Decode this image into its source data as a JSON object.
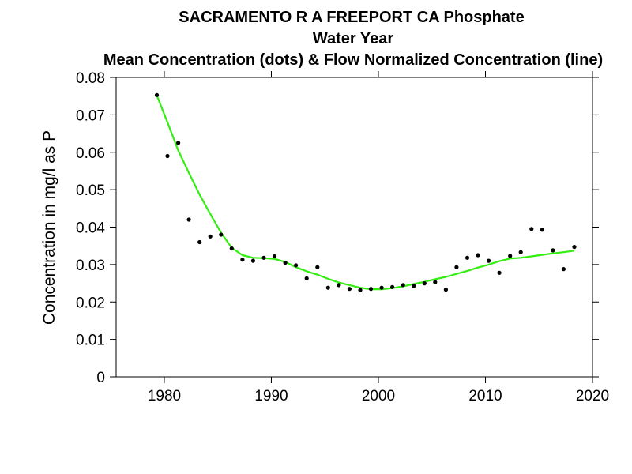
{
  "chart_data": {
    "type": "scatter",
    "title": "SACRAMENTO R A FREEPORT CA   Phosphate",
    "subtitle": "Water Year",
    "subtitle2": "Mean Concentration (dots) & Flow Normalized Concentration (line)",
    "xlabel": "",
    "ylabel": "Concentration in mg/l as P",
    "xlim": [
      1975.5,
      2020
    ],
    "ylim": [
      0,
      0.08
    ],
    "xticks": [
      1980,
      1990,
      2000,
      2010,
      2020
    ],
    "yticks": [
      0,
      0.01,
      0.02,
      0.03,
      0.04,
      0.05,
      0.06,
      0.07,
      0.08
    ],
    "xtick_labels": [
      "1980",
      "1990",
      "2000",
      "2010",
      "2020"
    ],
    "ytick_labels": [
      "0",
      "0.01",
      "0.02",
      "0.03",
      "0.04",
      "0.05",
      "0.06",
      "0.07",
      "0.08"
    ],
    "grid": false,
    "series": [
      {
        "name": "Mean Concentration",
        "kind": "dots",
        "color": "#000000",
        "x": [
          1979.3,
          1980.3,
          1981.3,
          1982.3,
          1983.3,
          1984.3,
          1985.3,
          1986.3,
          1987.3,
          1988.3,
          1989.3,
          1990.3,
          1991.3,
          1992.3,
          1993.3,
          1994.3,
          1995.3,
          1996.3,
          1997.3,
          1998.3,
          1999.3,
          2000.3,
          2001.3,
          2002.3,
          2003.3,
          2004.3,
          2005.3,
          2006.3,
          2007.3,
          2008.3,
          2009.3,
          2010.3,
          2011.3,
          2012.3,
          2013.3,
          2014.3,
          2015.3,
          2016.3,
          2017.3,
          2018.3
        ],
        "y": [
          0.0753,
          0.059,
          0.0625,
          0.042,
          0.036,
          0.0375,
          0.038,
          0.0343,
          0.0313,
          0.031,
          0.0318,
          0.0322,
          0.0305,
          0.0298,
          0.0263,
          0.0293,
          0.0238,
          0.0245,
          0.0235,
          0.0232,
          0.0235,
          0.0238,
          0.024,
          0.0245,
          0.0243,
          0.025,
          0.0253,
          0.0233,
          0.0293,
          0.0318,
          0.0325,
          0.031,
          0.0278,
          0.0323,
          0.0333,
          0.0395,
          0.0393,
          0.0338,
          0.0288,
          0.0347
        ]
      },
      {
        "name": "Flow Normalized Concentration",
        "kind": "line",
        "color": "#33ee11",
        "x": [
          1979.3,
          1980.3,
          1981.3,
          1982.3,
          1983.3,
          1984.3,
          1985.3,
          1986.3,
          1987.3,
          1988.3,
          1989.3,
          1990.3,
          1991.3,
          1992.3,
          1993.3,
          1994.3,
          1995.3,
          1996.3,
          1997.3,
          1998.3,
          1999.3,
          2000.3,
          2001.3,
          2002.3,
          2003.3,
          2004.3,
          2005.3,
          2006.3,
          2007.3,
          2008.3,
          2009.3,
          2010.3,
          2011.3,
          2012.3,
          2013.3,
          2014.3,
          2015.3,
          2016.3,
          2017.3,
          2018.3
        ],
        "y": [
          0.0752,
          0.068,
          0.0605,
          0.0545,
          0.0487,
          0.0435,
          0.0385,
          0.0345,
          0.0325,
          0.0318,
          0.0317,
          0.0315,
          0.0307,
          0.0293,
          0.0282,
          0.0273,
          0.0262,
          0.0252,
          0.0245,
          0.0238,
          0.0234,
          0.0234,
          0.0237,
          0.0242,
          0.0248,
          0.0254,
          0.0261,
          0.0267,
          0.0275,
          0.0283,
          0.0292,
          0.03,
          0.0309,
          0.0316,
          0.0318,
          0.0322,
          0.0326,
          0.033,
          0.0333,
          0.0337
        ]
      }
    ]
  }
}
